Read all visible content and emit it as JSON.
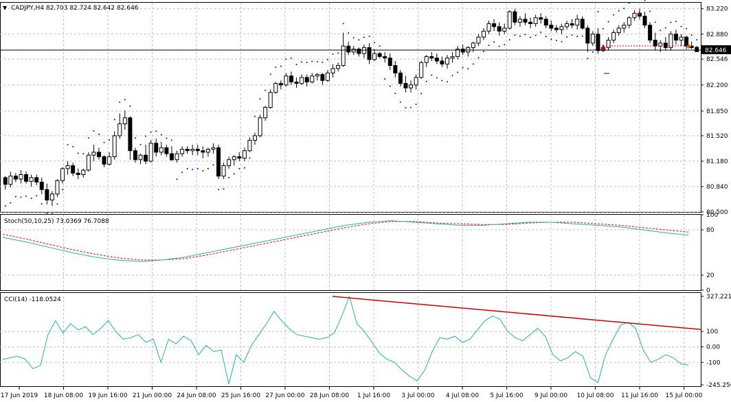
{
  "main_panel": {
    "title": "CADJPY,H4  82.703 82.724 82.642 82.646",
    "price_ticks": [
      "83.220",
      "82.880",
      "82.546",
      "82.200",
      "81.850",
      "81.520",
      "81.180",
      "80.840",
      "80.500"
    ],
    "last_price": "82.646"
  },
  "stoch_panel": {
    "title": "Stoch(50,10,25) 73.0369 76.7088",
    "ticks": [
      "100",
      "80",
      "20",
      "0"
    ]
  },
  "cci_panel": {
    "title": "CCI(14) -118.0524",
    "ticks": [
      "327.221",
      "100",
      "0.00",
      "-100",
      "-245.256"
    ]
  },
  "time_axis": {
    "labels": [
      "17 Jun 2019",
      "18 Jun 08:00",
      "19 Jun 16:00",
      "21 Jun 00:00",
      "24 Jun 08:00",
      "25 Jun 16:00",
      "27 Jun 00:00",
      "28 Jun 08:00",
      "1 Jul 16:00",
      "3 Jul 00:00",
      "4 Jul 08:00",
      "5 Jul 16:00",
      "9 Jul 00:00",
      "10 Jul 08:00",
      "11 Jul 16:00",
      "15 Jul 00:00"
    ]
  },
  "colors": {
    "bull_candle": "#ffffff",
    "bear_candle": "#000000",
    "sar_dots": "#0000cd",
    "stoch_main": "#20b2aa",
    "stoch_signal": "#ff0000",
    "cci_line": "#20b2aa",
    "trendline": "#cc0000",
    "price_line": "#cc0000"
  },
  "chart_data": [
    {
      "type": "candlestick",
      "symbol": "CADJPY",
      "timeframe": "H4",
      "ohlc": [
        [
          80.96,
          80.98,
          80.8,
          80.87
        ],
        [
          80.87,
          81.04,
          80.83,
          80.98
        ],
        [
          80.98,
          81.02,
          80.9,
          80.94
        ],
        [
          80.94,
          81.06,
          80.88,
          81.0
        ],
        [
          81.0,
          81.04,
          80.88,
          80.91
        ],
        [
          80.91,
          81.0,
          80.84,
          80.96
        ],
        [
          80.96,
          81.0,
          80.86,
          80.9
        ],
        [
          80.9,
          80.96,
          80.74,
          80.8
        ],
        [
          80.8,
          80.88,
          80.6,
          80.66
        ],
        [
          80.66,
          80.78,
          80.58,
          80.74
        ],
        [
          80.74,
          80.94,
          80.7,
          80.92
        ],
        [
          80.92,
          81.1,
          80.88,
          81.08
        ],
        [
          81.08,
          81.18,
          81.0,
          81.12
        ],
        [
          81.12,
          81.16,
          80.98,
          81.02
        ],
        [
          81.02,
          81.08,
          80.94,
          81.0
        ],
        [
          81.0,
          81.08,
          80.96,
          81.06
        ],
        [
          81.06,
          81.3,
          81.04,
          81.26
        ],
        [
          81.26,
          81.4,
          81.18,
          81.3
        ],
        [
          81.3,
          81.36,
          81.2,
          81.24
        ],
        [
          81.24,
          81.26,
          81.1,
          81.14
        ],
        [
          81.14,
          81.3,
          81.12,
          81.24
        ],
        [
          81.24,
          81.58,
          81.2,
          81.52
        ],
        [
          81.52,
          81.82,
          81.48,
          81.68
        ],
        [
          81.68,
          81.86,
          81.6,
          81.76
        ],
        [
          81.76,
          81.78,
          81.2,
          81.32
        ],
        [
          81.32,
          81.36,
          81.16,
          81.2
        ],
        [
          81.2,
          81.28,
          81.14,
          81.26
        ],
        [
          81.26,
          81.4,
          81.14,
          81.18
        ],
        [
          81.18,
          81.46,
          81.16,
          81.42
        ],
        [
          81.42,
          81.48,
          81.24,
          81.3
        ],
        [
          81.3,
          81.44,
          81.26,
          81.36
        ],
        [
          81.36,
          81.4,
          81.24,
          81.28
        ],
        [
          81.28,
          81.38,
          81.18,
          81.2
        ],
        [
          81.2,
          81.32,
          81.16,
          81.28
        ],
        [
          81.28,
          81.38,
          81.24,
          81.34
        ],
        [
          81.34,
          81.38,
          81.28,
          81.32
        ],
        [
          81.32,
          81.4,
          81.26,
          81.34
        ],
        [
          81.34,
          81.4,
          81.26,
          81.32
        ],
        [
          81.32,
          81.38,
          81.22,
          81.3
        ],
        [
          81.3,
          81.36,
          81.24,
          81.34
        ],
        [
          81.34,
          81.42,
          81.28,
          81.36
        ],
        [
          81.36,
          81.4,
          80.94,
          80.98
        ],
        [
          80.98,
          81.16,
          80.94,
          81.12
        ],
        [
          81.12,
          81.24,
          81.08,
          81.2
        ],
        [
          81.2,
          81.26,
          81.12,
          81.24
        ],
        [
          81.24,
          81.3,
          81.18,
          81.22
        ],
        [
          81.22,
          81.36,
          81.18,
          81.32
        ],
        [
          81.32,
          81.5,
          81.3,
          81.46
        ],
        [
          81.46,
          81.56,
          81.4,
          81.52
        ],
        [
          81.52,
          81.8,
          81.5,
          81.76
        ],
        [
          81.76,
          81.92,
          81.72,
          81.9
        ],
        [
          81.9,
          82.14,
          81.88,
          82.1
        ],
        [
          82.1,
          82.24,
          82.08,
          82.22
        ],
        [
          82.22,
          82.26,
          82.14,
          82.2
        ],
        [
          82.2,
          82.36,
          82.18,
          82.32
        ],
        [
          82.32,
          82.38,
          82.2,
          82.24
        ],
        [
          82.24,
          82.3,
          82.16,
          82.22
        ],
        [
          82.22,
          82.34,
          82.2,
          82.3
        ],
        [
          82.3,
          82.34,
          82.18,
          82.24
        ],
        [
          82.24,
          82.36,
          82.22,
          82.32
        ],
        [
          82.32,
          82.36,
          82.26,
          82.34
        ],
        [
          82.34,
          82.36,
          82.2,
          82.26
        ],
        [
          82.26,
          82.4,
          82.24,
          82.36
        ],
        [
          82.36,
          82.48,
          82.3,
          82.42
        ],
        [
          82.42,
          82.5,
          82.38,
          82.46
        ],
        [
          82.46,
          82.9,
          82.44,
          82.72
        ],
        [
          82.72,
          82.78,
          82.6,
          82.64
        ],
        [
          82.64,
          82.72,
          82.6,
          82.68
        ],
        [
          82.68,
          82.7,
          82.58,
          82.62
        ],
        [
          82.62,
          82.74,
          82.56,
          82.7
        ],
        [
          82.7,
          82.76,
          82.48,
          82.54
        ],
        [
          82.54,
          82.68,
          82.52,
          82.62
        ],
        [
          82.62,
          82.64,
          82.56,
          82.58
        ],
        [
          82.58,
          82.64,
          82.5,
          82.56
        ],
        [
          82.56,
          82.62,
          82.4,
          82.46
        ],
        [
          82.46,
          82.52,
          82.3,
          82.36
        ],
        [
          82.36,
          82.4,
          82.18,
          82.22
        ],
        [
          82.22,
          82.32,
          82.1,
          82.16
        ],
        [
          82.16,
          82.26,
          82.1,
          82.2
        ],
        [
          82.2,
          82.34,
          82.14,
          82.3
        ],
        [
          82.3,
          82.52,
          82.28,
          82.5
        ],
        [
          82.5,
          82.6,
          82.44,
          82.58
        ],
        [
          82.58,
          82.64,
          82.52,
          82.56
        ],
        [
          82.56,
          82.62,
          82.48,
          82.52
        ],
        [
          82.52,
          82.58,
          82.44,
          82.48
        ],
        [
          82.48,
          82.6,
          82.42,
          82.56
        ],
        [
          82.56,
          82.64,
          82.5,
          82.58
        ],
        [
          82.58,
          82.72,
          82.54,
          82.68
        ],
        [
          82.68,
          82.74,
          82.6,
          82.64
        ],
        [
          82.64,
          82.72,
          82.58,
          82.7
        ],
        [
          82.7,
          82.78,
          82.64,
          82.76
        ],
        [
          82.76,
          82.88,
          82.72,
          82.84
        ],
        [
          82.84,
          82.96,
          82.8,
          82.92
        ],
        [
          82.92,
          83.06,
          82.88,
          83.02
        ],
        [
          83.02,
          83.08,
          82.92,
          82.98
        ],
        [
          82.98,
          83.04,
          82.86,
          82.92
        ],
        [
          82.92,
          83.02,
          82.88,
          82.96
        ],
        [
          82.96,
          83.2,
          82.94,
          83.18
        ],
        [
          83.18,
          83.22,
          83.0,
          83.04
        ],
        [
          83.04,
          83.12,
          82.98,
          83.08
        ],
        [
          83.08,
          83.16,
          83.0,
          83.04
        ],
        [
          83.04,
          83.1,
          82.96,
          83.02
        ],
        [
          83.02,
          83.14,
          82.98,
          83.1
        ],
        [
          83.1,
          83.16,
          83.02,
          83.08
        ],
        [
          83.08,
          83.12,
          82.96,
          83.0
        ],
        [
          83.0,
          83.06,
          82.92,
          82.96
        ],
        [
          82.96,
          83.0,
          82.9,
          82.94
        ],
        [
          82.94,
          83.02,
          82.88,
          82.98
        ],
        [
          82.98,
          83.06,
          82.94,
          83.02
        ],
        [
          83.02,
          83.08,
          82.96,
          83.0
        ],
        [
          83.0,
          83.14,
          82.94,
          83.08
        ],
        [
          83.08,
          83.12,
          82.94,
          82.96
        ],
        [
          82.96,
          83.0,
          82.64,
          82.76
        ],
        [
          82.76,
          82.92,
          82.72,
          82.88
        ],
        [
          82.88,
          82.96,
          82.62,
          82.66
        ],
        [
          82.66,
          82.74,
          82.64,
          82.7
        ],
        [
          82.7,
          82.84,
          82.66,
          82.8
        ],
        [
          82.8,
          82.94,
          82.76,
          82.9
        ],
        [
          82.9,
          83.0,
          82.86,
          82.96
        ],
        [
          82.96,
          83.04,
          82.9,
          83.0
        ],
        [
          83.0,
          83.12,
          82.96,
          83.1
        ],
        [
          83.1,
          83.2,
          83.06,
          83.16
        ],
        [
          83.16,
          83.22,
          83.08,
          83.12
        ],
        [
          83.12,
          83.18,
          82.96,
          83.0
        ],
        [
          83.0,
          83.04,
          82.76,
          82.8
        ],
        [
          82.8,
          82.9,
          82.66,
          82.72
        ],
        [
          82.72,
          82.8,
          82.64,
          82.76
        ],
        [
          82.76,
          82.84,
          82.66,
          82.7
        ],
        [
          82.7,
          82.92,
          82.66,
          82.88
        ],
        [
          82.88,
          82.94,
          82.74,
          82.8
        ],
        [
          82.8,
          82.88,
          82.72,
          82.84
        ],
        [
          82.84,
          82.86,
          82.68,
          82.72
        ],
        [
          82.72,
          82.78,
          82.68,
          82.7
        ],
        [
          82.703,
          82.724,
          82.642,
          82.646
        ]
      ],
      "parabolic_sar_trend": [
        "up until 24 Jun",
        "down until 25 Jun 16:00",
        "up until 1 Jul",
        "down until 3 Jul",
        "up until 10 Jul",
        "down to end"
      ],
      "ylim": [
        80.5,
        83.3
      ]
    },
    {
      "type": "line",
      "indicator": "Stochastic",
      "series": [
        {
          "values": [
            70,
            64,
            57,
            50,
            44,
            40,
            38,
            40,
            44,
            50,
            56,
            62,
            68,
            74,
            80,
            86,
            90,
            92,
            90,
            88,
            86,
            86,
            88,
            90,
            90,
            88,
            86,
            84,
            80,
            76,
            73
          ]
        },
        {
          "values": [
            74,
            68,
            61,
            54,
            48,
            43,
            40,
            40,
            42,
            47,
            53,
            59,
            65,
            71,
            77,
            83,
            88,
            91,
            91,
            89,
            88,
            87,
            87,
            89,
            90,
            90,
            88,
            86,
            83,
            80,
            77
          ]
        }
      ],
      "ylim": [
        0,
        100
      ]
    },
    {
      "type": "line",
      "indicator": "CCI",
      "series": [
        {
          "values": [
            -80,
            -70,
            -60,
            -80,
            -140,
            -120,
            80,
            170,
            90,
            150,
            110,
            130,
            80,
            120,
            170,
            100,
            50,
            60,
            80,
            30,
            50,
            -100,
            50,
            20,
            70,
            40,
            -50,
            10,
            -30,
            -20,
            -240,
            -50,
            -100,
            10,
            80,
            150,
            230,
            170,
            120,
            80,
            70,
            60,
            50,
            60,
            90,
            200,
            327,
            150,
            100,
            30,
            -40,
            -80,
            -100,
            -150,
            -190,
            -220,
            -150,
            -30,
            60,
            50,
            70,
            30,
            50,
            110,
            170,
            200,
            180,
            100,
            60,
            40,
            80,
            120,
            70,
            -50,
            -90,
            -70,
            -30,
            -60,
            -200,
            -230,
            -50,
            50,
            140,
            160,
            120,
            -20,
            -100,
            -80,
            -50,
            -70,
            -110,
            -118
          ]
        },
        {
          "values": [
            327,
            113
          ]
        }
      ],
      "ylim": [
        -245.256,
        327.221
      ]
    }
  ]
}
